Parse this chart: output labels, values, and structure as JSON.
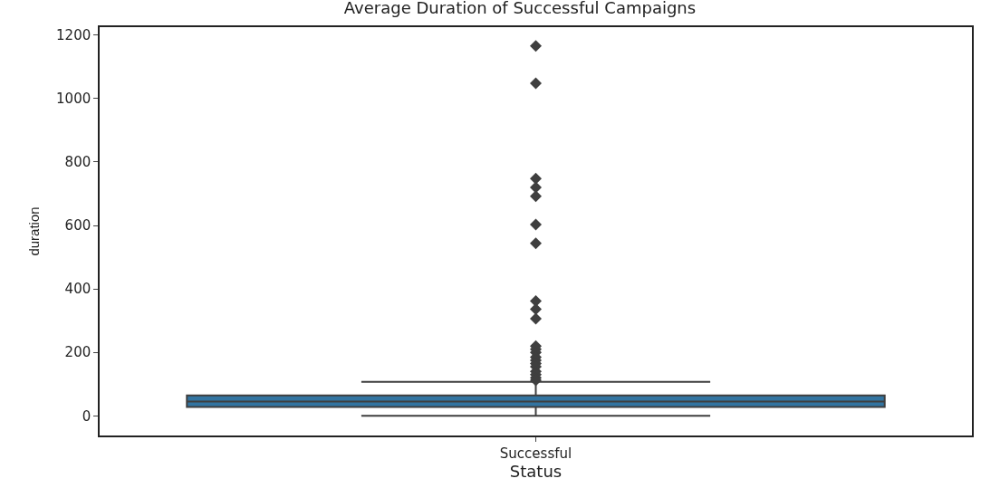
{
  "chart_data": {
    "type": "box",
    "title": "Average Duration of Successful Campaigns",
    "xlabel": "Status",
    "ylabel": "duration",
    "categories": [
      "Successful"
    ],
    "boxes": [
      {
        "low": 0,
        "q1": 28,
        "median": 45,
        "q3": 64,
        "high": 107,
        "outliers": [
          1166,
          1048,
          748,
          720,
          692,
          603,
          544,
          362,
          336,
          306,
          220,
          210,
          200,
          185,
          175,
          165,
          155,
          140,
          130,
          120,
          112
        ]
      }
    ],
    "color": "#3274a1",
    "ylim": [
      -62,
      1225
    ],
    "yticks": [
      0,
      200,
      400,
      600,
      800,
      1000,
      1200
    ],
    "marker": "diamond"
  }
}
